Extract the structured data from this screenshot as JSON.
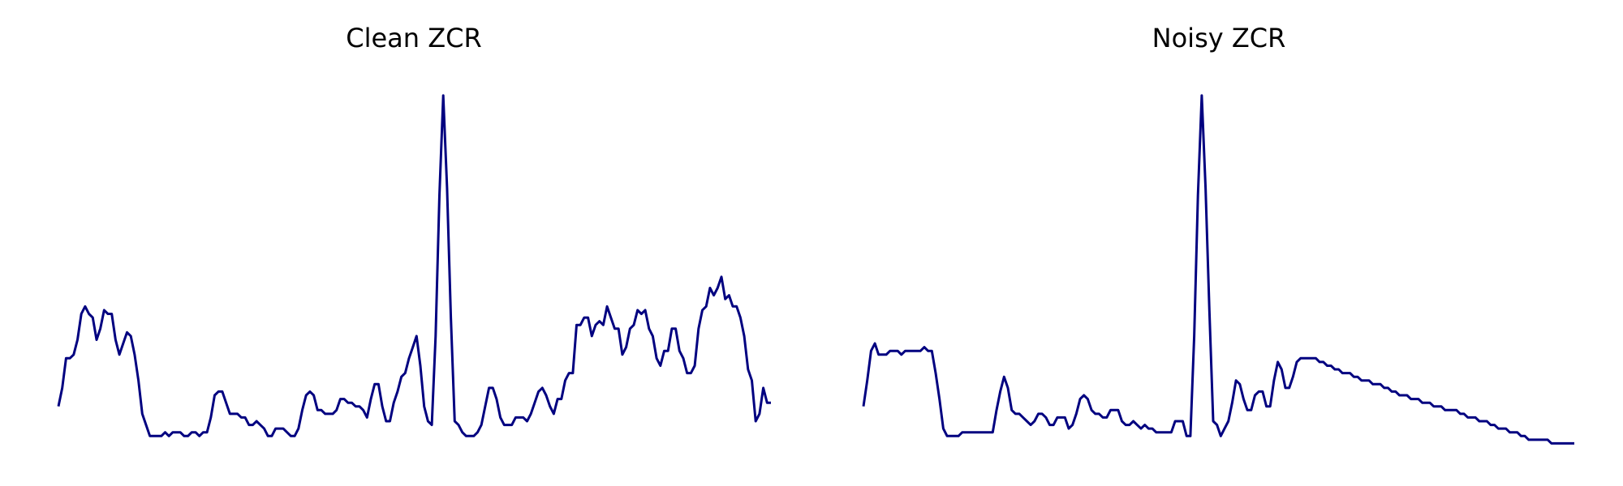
{
  "line_color": "#000080",
  "background_color": "#ffffff",
  "chart_data": [
    {
      "type": "line",
      "title": "Clean ZCR",
      "axes_visible": false,
      "grid": false,
      "ylim": [
        0,
        1
      ],
      "y": [
        0.11,
        0.16,
        0.24,
        0.24,
        0.25,
        0.29,
        0.36,
        0.38,
        0.36,
        0.35,
        0.29,
        0.32,
        0.37,
        0.36,
        0.36,
        0.29,
        0.25,
        0.28,
        0.31,
        0.3,
        0.25,
        0.18,
        0.09,
        0.06,
        0.03,
        0.03,
        0.03,
        0.03,
        0.04,
        0.03,
        0.04,
        0.04,
        0.04,
        0.03,
        0.03,
        0.04,
        0.04,
        0.03,
        0.04,
        0.04,
        0.08,
        0.14,
        0.15,
        0.15,
        0.12,
        0.09,
        0.09,
        0.09,
        0.08,
        0.08,
        0.06,
        0.06,
        0.07,
        0.06,
        0.05,
        0.03,
        0.03,
        0.05,
        0.05,
        0.05,
        0.04,
        0.03,
        0.03,
        0.05,
        0.1,
        0.14,
        0.15,
        0.14,
        0.1,
        0.1,
        0.09,
        0.09,
        0.09,
        0.1,
        0.13,
        0.13,
        0.12,
        0.12,
        0.11,
        0.11,
        0.1,
        0.08,
        0.13,
        0.17,
        0.17,
        0.11,
        0.07,
        0.07,
        0.12,
        0.15,
        0.19,
        0.2,
        0.24,
        0.27,
        0.3,
        0.22,
        0.11,
        0.07,
        0.06,
        0.3,
        0.68,
        0.95,
        0.7,
        0.35,
        0.07,
        0.06,
        0.04,
        0.03,
        0.03,
        0.03,
        0.04,
        0.06,
        0.11,
        0.16,
        0.16,
        0.13,
        0.08,
        0.06,
        0.06,
        0.06,
        0.08,
        0.08,
        0.08,
        0.07,
        0.09,
        0.12,
        0.15,
        0.16,
        0.14,
        0.11,
        0.09,
        0.13,
        0.13,
        0.18,
        0.2,
        0.2,
        0.33,
        0.33,
        0.35,
        0.35,
        0.3,
        0.33,
        0.34,
        0.33,
        0.38,
        0.35,
        0.32,
        0.32,
        0.25,
        0.27,
        0.32,
        0.33,
        0.37,
        0.36,
        0.37,
        0.32,
        0.3,
        0.24,
        0.22,
        0.26,
        0.26,
        0.32,
        0.32,
        0.26,
        0.24,
        0.2,
        0.2,
        0.22,
        0.32,
        0.37,
        0.38,
        0.43,
        0.41,
        0.43,
        0.46,
        0.4,
        0.41,
        0.38,
        0.38,
        0.35,
        0.3,
        0.21,
        0.18,
        0.07,
        0.09,
        0.16,
        0.12,
        0.12
      ]
    },
    {
      "type": "line",
      "title": "Noisy ZCR",
      "axes_visible": false,
      "grid": false,
      "ylim": [
        0,
        1
      ],
      "y": [
        0.11,
        0.18,
        0.26,
        0.28,
        0.25,
        0.25,
        0.25,
        0.26,
        0.26,
        0.26,
        0.25,
        0.26,
        0.26,
        0.26,
        0.26,
        0.26,
        0.27,
        0.26,
        0.26,
        0.2,
        0.13,
        0.05,
        0.03,
        0.03,
        0.03,
        0.03,
        0.04,
        0.04,
        0.04,
        0.04,
        0.04,
        0.04,
        0.04,
        0.04,
        0.04,
        0.1,
        0.15,
        0.19,
        0.16,
        0.1,
        0.09,
        0.09,
        0.08,
        0.07,
        0.06,
        0.07,
        0.09,
        0.09,
        0.08,
        0.06,
        0.06,
        0.08,
        0.08,
        0.08,
        0.05,
        0.06,
        0.09,
        0.13,
        0.14,
        0.13,
        0.1,
        0.09,
        0.09,
        0.08,
        0.08,
        0.1,
        0.1,
        0.1,
        0.07,
        0.06,
        0.06,
        0.07,
        0.06,
        0.05,
        0.06,
        0.05,
        0.05,
        0.04,
        0.04,
        0.04,
        0.04,
        0.04,
        0.07,
        0.07,
        0.07,
        0.03,
        0.03,
        0.3,
        0.68,
        0.95,
        0.7,
        0.37,
        0.07,
        0.06,
        0.03,
        0.05,
        0.07,
        0.12,
        0.18,
        0.17,
        0.13,
        0.1,
        0.1,
        0.14,
        0.15,
        0.15,
        0.11,
        0.11,
        0.18,
        0.23,
        0.21,
        0.16,
        0.16,
        0.19,
        0.23,
        0.24,
        0.24,
        0.24,
        0.24,
        0.24,
        0.23,
        0.23,
        0.22,
        0.22,
        0.21,
        0.21,
        0.2,
        0.2,
        0.2,
        0.19,
        0.19,
        0.18,
        0.18,
        0.18,
        0.17,
        0.17,
        0.17,
        0.16,
        0.16,
        0.15,
        0.15,
        0.14,
        0.14,
        0.14,
        0.13,
        0.13,
        0.13,
        0.12,
        0.12,
        0.12,
        0.11,
        0.11,
        0.11,
        0.1,
        0.1,
        0.1,
        0.1,
        0.09,
        0.09,
        0.08,
        0.08,
        0.08,
        0.07,
        0.07,
        0.07,
        0.06,
        0.06,
        0.05,
        0.05,
        0.05,
        0.04,
        0.04,
        0.04,
        0.03,
        0.03,
        0.02,
        0.02,
        0.02,
        0.02,
        0.02,
        0.02,
        0.01,
        0.01,
        0.01,
        0.01,
        0.01,
        0.01,
        0.01
      ]
    }
  ]
}
